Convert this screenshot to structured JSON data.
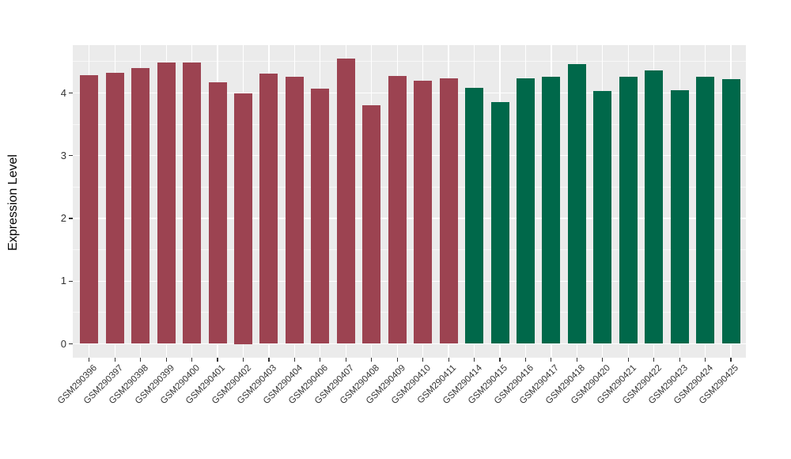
{
  "chart_data": {
    "type": "bar",
    "title": "",
    "xlabel": "",
    "ylabel": "Expression Level",
    "yticks": [
      0,
      1,
      2,
      3,
      4
    ],
    "minor_ticks": [
      0.5,
      1.5,
      2.5,
      3.5,
      4.5
    ],
    "ylim": [
      -0.23,
      4.76
    ],
    "grid": "on",
    "legend_position": "none",
    "categories": [
      "GSM290396",
      "GSM290397",
      "GSM290398",
      "GSM290399",
      "GSM290400",
      "GSM290401",
      "GSM290402",
      "GSM290403",
      "GSM290404",
      "GSM290406",
      "GSM290407",
      "GSM290408",
      "GSM290409",
      "GSM290410",
      "GSM290411",
      "GSM290414",
      "GSM290415",
      "GSM290416",
      "GSM290417",
      "GSM290418",
      "GSM290420",
      "GSM290421",
      "GSM290422",
      "GSM290423",
      "GSM290424",
      "GSM290425"
    ],
    "values": [
      4.28,
      4.32,
      4.4,
      4.49,
      4.49,
      4.17,
      4.0,
      4.31,
      4.26,
      4.07,
      4.55,
      3.81,
      4.27,
      4.2,
      4.23,
      4.08,
      3.86,
      4.23,
      4.26,
      4.46,
      4.03,
      4.26,
      4.36,
      4.05,
      4.26,
      4.22
    ],
    "groups": [
      "group1",
      "group1",
      "group1",
      "group1",
      "group1",
      "group1",
      "group1",
      "group1",
      "group1",
      "group1",
      "group1",
      "group1",
      "group1",
      "group1",
      "group1",
      "group2",
      "group2",
      "group2",
      "group2",
      "group2",
      "group2",
      "group2",
      "group2",
      "group2",
      "group2",
      "group2"
    ],
    "colors": {
      "group1": "#9C4351",
      "group2": "#00684A"
    },
    "panel_background": "#EBEBEB",
    "grid_major_color": "#FFFFFF",
    "axis_text_color": "#333333"
  }
}
